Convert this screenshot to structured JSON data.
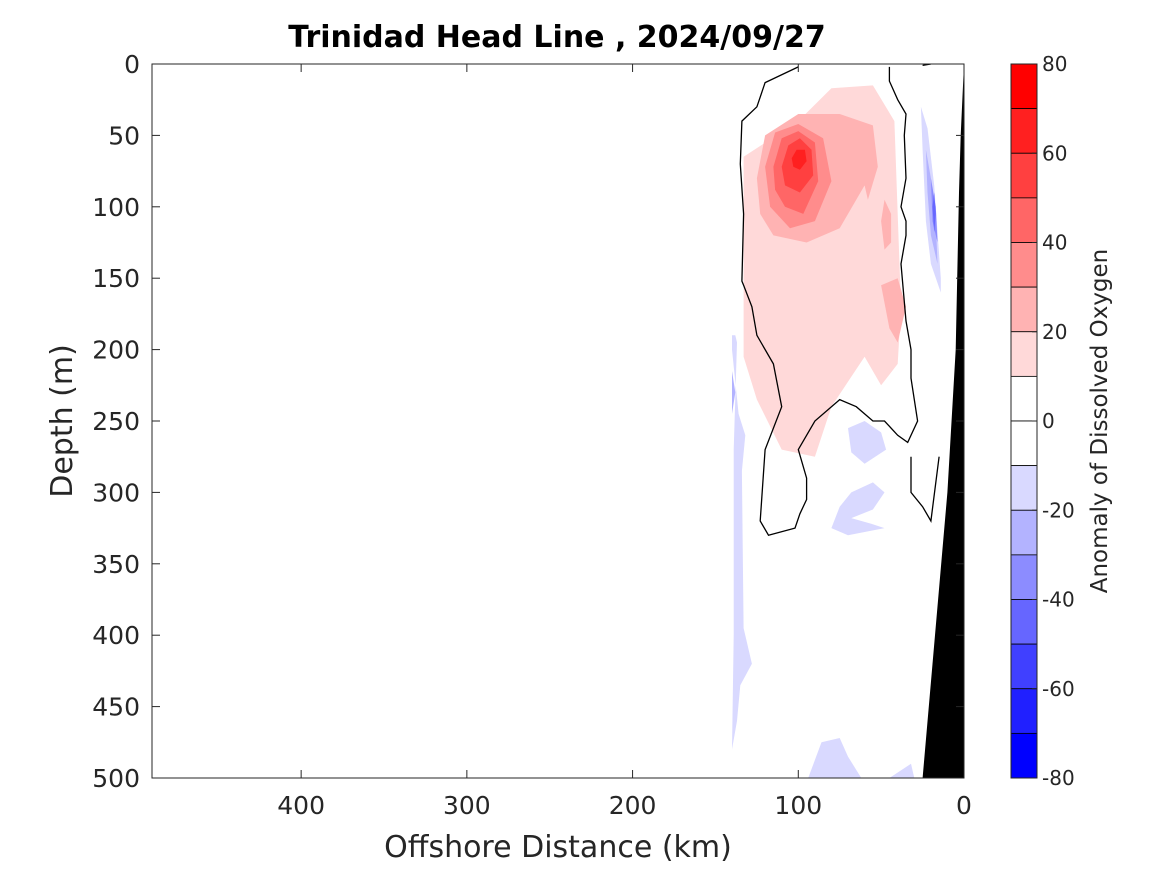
{
  "chart_data": {
    "type": "heatmap",
    "title": "Trinidad Head Line , 2024/09/27",
    "xlabel": "Offshore Distance (km)",
    "ylabel": "Depth (m)",
    "xlim": [
      490,
      0
    ],
    "ylim": [
      0,
      500
    ],
    "x_reversed": true,
    "y_reversed": true,
    "xticks": [
      400,
      300,
      200,
      100,
      0
    ],
    "yticks": [
      0,
      50,
      100,
      150,
      200,
      250,
      300,
      350,
      400,
      450,
      500
    ],
    "colorbar": {
      "label": "Anomaly of Dissolved Oxygen",
      "range": [
        -80,
        80
      ],
      "ticks": [
        80,
        60,
        40,
        20,
        0,
        -20,
        -40,
        -60,
        -80
      ],
      "levels": [
        {
          "min": 70,
          "max": 80,
          "color": "#ff0000"
        },
        {
          "min": 60,
          "max": 70,
          "color": "#ff2020"
        },
        {
          "min": 50,
          "max": 60,
          "color": "#ff4040"
        },
        {
          "min": 40,
          "max": 50,
          "color": "#ff6666"
        },
        {
          "min": 30,
          "max": 40,
          "color": "#ff8c8c"
        },
        {
          "min": 20,
          "max": 30,
          "color": "#ffb3b3"
        },
        {
          "min": 10,
          "max": 20,
          "color": "#ffd9d9"
        },
        {
          "min": 0,
          "max": 10,
          "color": "#ffffff"
        },
        {
          "min": -10,
          "max": 0,
          "color": "#ffffff"
        },
        {
          "min": -20,
          "max": -10,
          "color": "#d9d9ff"
        },
        {
          "min": -30,
          "max": -20,
          "color": "#b3b3ff"
        },
        {
          "min": -40,
          "max": -30,
          "color": "#8c8cff"
        },
        {
          "min": -50,
          "max": -40,
          "color": "#6666ff"
        },
        {
          "min": -60,
          "max": -50,
          "color": "#4040ff"
        },
        {
          "min": -70,
          "max": -60,
          "color": "#2020ff"
        },
        {
          "min": -80,
          "max": -70,
          "color": "#0000ff"
        }
      ]
    },
    "regions": [
      {
        "value": 15,
        "color": "#ffd9d9",
        "points": [
          [
            133,
            100
          ],
          [
            133,
            65
          ],
          [
            100,
            40
          ],
          [
            80,
            17
          ],
          [
            55,
            15
          ],
          [
            42,
            40
          ],
          [
            38,
            170
          ],
          [
            40,
            210
          ],
          [
            50,
            225
          ],
          [
            60,
            205
          ],
          [
            80,
            240
          ],
          [
            90,
            275
          ],
          [
            110,
            270
          ],
          [
            125,
            235
          ],
          [
            133,
            205
          ]
        ]
      },
      {
        "value": 25,
        "color": "#ffb3b3",
        "points": [
          [
            125,
            80
          ],
          [
            120,
            50
          ],
          [
            100,
            35
          ],
          [
            75,
            35
          ],
          [
            55,
            43
          ],
          [
            52,
            72
          ],
          [
            58,
            95
          ],
          [
            60,
            85
          ],
          [
            75,
            115
          ],
          [
            95,
            125
          ],
          [
            115,
            120
          ],
          [
            123,
            105
          ]
        ]
      },
      {
        "value": 25,
        "color": "#ffb3b3",
        "points": [
          [
            50,
            155
          ],
          [
            45,
            185
          ],
          [
            40,
            195
          ],
          [
            35,
            170
          ],
          [
            40,
            150
          ]
        ]
      },
      {
        "value": 25,
        "color": "#ffb3b3",
        "points": [
          [
            50,
            110
          ],
          [
            48,
            130
          ],
          [
            44,
            125
          ],
          [
            44,
            105
          ],
          [
            48,
            95
          ]
        ]
      },
      {
        "value": 35,
        "color": "#ff8c8c",
        "points": [
          [
            120,
            72
          ],
          [
            114,
            48
          ],
          [
            100,
            42
          ],
          [
            85,
            52
          ],
          [
            80,
            82
          ],
          [
            90,
            110
          ],
          [
            105,
            115
          ],
          [
            117,
            100
          ]
        ]
      },
      {
        "value": 45,
        "color": "#ff6666",
        "points": [
          [
            115,
            72
          ],
          [
            110,
            52
          ],
          [
            100,
            47
          ],
          [
            90,
            55
          ],
          [
            88,
            82
          ],
          [
            97,
            105
          ],
          [
            108,
            100
          ],
          [
            114,
            88
          ]
        ]
      },
      {
        "value": 55,
        "color": "#ff4040",
        "points": [
          [
            110,
            72
          ],
          [
            106,
            57
          ],
          [
            99,
            52
          ],
          [
            92,
            60
          ],
          [
            91,
            78
          ],
          [
            99,
            90
          ],
          [
            108,
            85
          ]
        ]
      },
      {
        "value": 65,
        "color": "#ff2020",
        "points": [
          [
            104,
            66
          ],
          [
            101,
            60
          ],
          [
            96,
            60
          ],
          [
            95,
            68
          ],
          [
            99,
            74
          ],
          [
            103,
            72
          ]
        ]
      },
      {
        "value": -15,
        "color": "#d9d9ff",
        "points": [
          [
            140,
            190
          ],
          [
            138,
            190
          ],
          [
            137,
            195
          ],
          [
            139,
            270
          ],
          [
            139,
            400
          ],
          [
            140,
            480
          ],
          [
            137,
            460
          ],
          [
            135,
            435
          ],
          [
            128,
            420
          ],
          [
            133,
            395
          ],
          [
            134,
            285
          ],
          [
            132,
            260
          ],
          [
            136,
            245
          ],
          [
            140,
            200
          ]
        ]
      },
      {
        "value": -25,
        "color": "#b3b3ff",
        "points": [
          [
            140,
            215
          ],
          [
            138,
            230
          ],
          [
            140,
            245
          ]
        ]
      },
      {
        "value": -15,
        "color": "#d9d9ff",
        "points": [
          [
            70,
            255
          ],
          [
            60,
            250
          ],
          [
            50,
            258
          ],
          [
            47,
            270
          ],
          [
            60,
            280
          ],
          [
            68,
            272
          ]
        ]
      },
      {
        "value": -15,
        "color": "#d9d9ff",
        "points": [
          [
            68,
            300
          ],
          [
            55,
            293
          ],
          [
            48,
            300
          ],
          [
            55,
            312
          ],
          [
            68,
            318
          ],
          [
            56,
            322
          ],
          [
            48,
            325
          ],
          [
            70,
            330
          ],
          [
            80,
            325
          ],
          [
            75,
            310
          ]
        ]
      },
      {
        "value": -15,
        "color": "#d9d9ff",
        "points": [
          [
            94,
            500
          ],
          [
            86,
            475
          ],
          [
            75,
            472
          ],
          [
            70,
            485
          ],
          [
            62,
            500
          ]
        ]
      },
      {
        "value": -15,
        "color": "#d9d9ff",
        "points": [
          [
            45,
            500
          ],
          [
            32,
            490
          ],
          [
            30,
            500
          ]
        ]
      },
      {
        "value": -15,
        "color": "#d9d9ff",
        "points": [
          [
            26,
            30
          ],
          [
            22,
            45
          ],
          [
            18,
            85
          ],
          [
            14,
            150
          ],
          [
            14,
            160
          ],
          [
            20,
            140
          ],
          [
            23,
            110
          ],
          [
            25,
            60
          ]
        ]
      },
      {
        "value": -25,
        "color": "#b3b3ff",
        "points": [
          [
            23,
            60
          ],
          [
            20,
            80
          ],
          [
            17,
            110
          ],
          [
            16,
            140
          ],
          [
            20,
            120
          ],
          [
            22,
            90
          ]
        ]
      },
      {
        "value": -35,
        "color": "#8c8cff",
        "points": [
          [
            20,
            80
          ],
          [
            17,
            100
          ],
          [
            16,
            125
          ],
          [
            19,
            110
          ]
        ]
      },
      {
        "value": -45,
        "color": "#6666ff",
        "points": [
          [
            18,
            90
          ],
          [
            17,
            105
          ],
          [
            18,
            118
          ],
          [
            19,
            100
          ]
        ]
      }
    ],
    "contours_zero": [
      [
        [
          100,
          2
        ],
        [
          120,
          13
        ],
        [
          125,
          30
        ],
        [
          134,
          40
        ],
        [
          135,
          70
        ],
        [
          133,
          105
        ],
        [
          134,
          152
        ],
        [
          133,
          155
        ],
        [
          128,
          170
        ],
        [
          125,
          190
        ],
        [
          115,
          210
        ],
        [
          110,
          240
        ],
        [
          120,
          270
        ],
        [
          123,
          320
        ],
        [
          118,
          330
        ],
        [
          102,
          325
        ],
        [
          99,
          315
        ],
        [
          95,
          305
        ],
        [
          95,
          290
        ],
        [
          100,
          270
        ],
        [
          90,
          250
        ],
        [
          75,
          235
        ],
        [
          65,
          240
        ],
        [
          55,
          250
        ],
        [
          48,
          250
        ],
        [
          40,
          260
        ],
        [
          34,
          265
        ],
        [
          28,
          250
        ],
        [
          32,
          220
        ],
        [
          32,
          200
        ],
        [
          35,
          180
        ],
        [
          38,
          140
        ],
        [
          35,
          120
        ],
        [
          35,
          110
        ],
        [
          38,
          100
        ],
        [
          35,
          80
        ],
        [
          36,
          50
        ],
        [
          35,
          35
        ],
        [
          40,
          25
        ],
        [
          45,
          12
        ],
        [
          45,
          2
        ]
      ],
      [
        [
          20,
          0
        ],
        [
          25,
          1
        ]
      ],
      [
        [
          32,
          275
        ],
        [
          32,
          300
        ],
        [
          25,
          310
        ],
        [
          20,
          320
        ],
        [
          15,
          275
        ]
      ]
    ],
    "bathymetry": [
      [
        0,
        0
      ],
      [
        2,
        50
      ],
      [
        3,
        90
      ],
      [
        5,
        200
      ],
      [
        10,
        300
      ],
      [
        25,
        500
      ],
      [
        0,
        500
      ]
    ]
  }
}
